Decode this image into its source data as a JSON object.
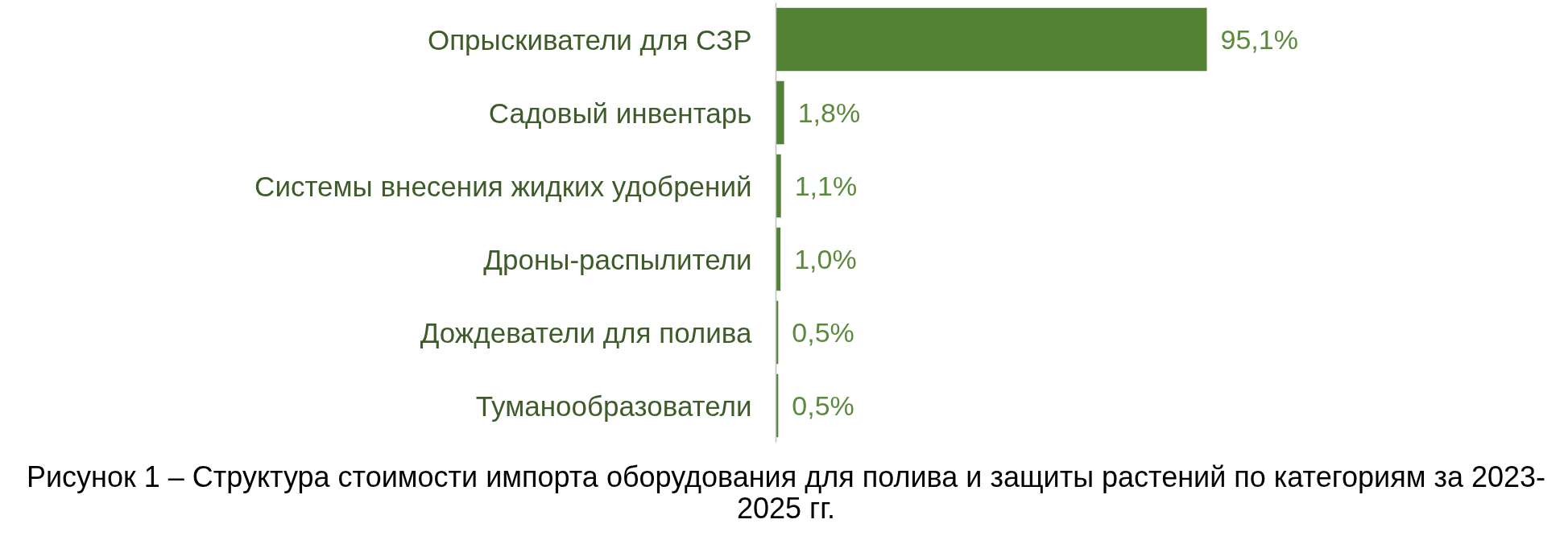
{
  "chart_data": {
    "type": "bar",
    "orientation": "horizontal",
    "categories": [
      "Опрыскиватели для СЗР",
      "Садовый инвентарь",
      "Системы внесения жидких удобрений",
      "Дроны-распылители",
      "Дождеватели для полива",
      "Туманообразователи"
    ],
    "values": [
      95.1,
      1.8,
      1.1,
      1.0,
      0.5,
      0.5
    ],
    "color": "#548235",
    "value_labels": [
      "95,1%",
      "1,8%",
      "1,1%",
      "1,0%",
      "0,5%",
      "0,5%"
    ],
    "tick_labels": "y",
    "annotations": [
      "Рисунок 1 – Структура стоимости импорта оборудования для полива и защиты растений по категориям за 2023-2025 гг."
    ]
  }
}
